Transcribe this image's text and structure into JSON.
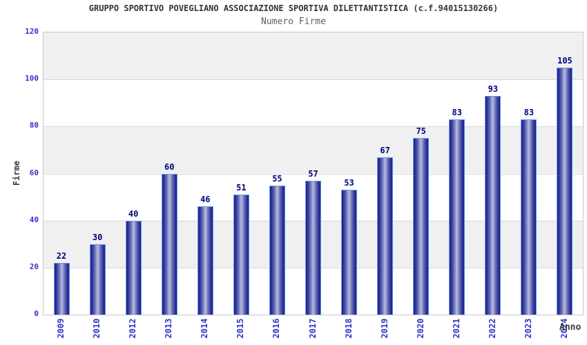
{
  "header": {
    "title": "GRUPPO SPORTIVO POVEGLIANO ASSOCIAZIONE SPORTIVA DILETTANTISTICA (c.f.94015130266)",
    "subtitle": "Numero Firme"
  },
  "chart_data": {
    "type": "bar",
    "title": "GRUPPO SPORTIVO POVEGLIANO ASSOCIAZIONE SPORTIVA DILETTANTISTICA (c.f.94015130266)",
    "subtitle": "Numero Firme",
    "categories": [
      "2009",
      "2010",
      "2012",
      "2013",
      "2014",
      "2015",
      "2016",
      "2017",
      "2018",
      "2019",
      "2020",
      "2021",
      "2022",
      "2023",
      "2024"
    ],
    "values": [
      22,
      30,
      40,
      60,
      46,
      51,
      55,
      57,
      53,
      67,
      75,
      83,
      93,
      83,
      105
    ],
    "xlabel": "Anno",
    "ylabel": "Firme",
    "ylim": [
      0,
      120
    ],
    "yticks": [
      0,
      20,
      40,
      60,
      80,
      100,
      120
    ],
    "grid": true,
    "legend": "none",
    "colors": {
      "bar_edge_dark": "#21218a",
      "bar_center_light": "#b7bde1",
      "bar_border": "#5d9ceb",
      "tick_label": "#3333cc",
      "value_label": "#00007e",
      "band_gray": "#f0f0f0",
      "gridline": "#d8d8d8",
      "title_text": "#333333",
      "subtitle_text": "#5e5e5e"
    }
  }
}
